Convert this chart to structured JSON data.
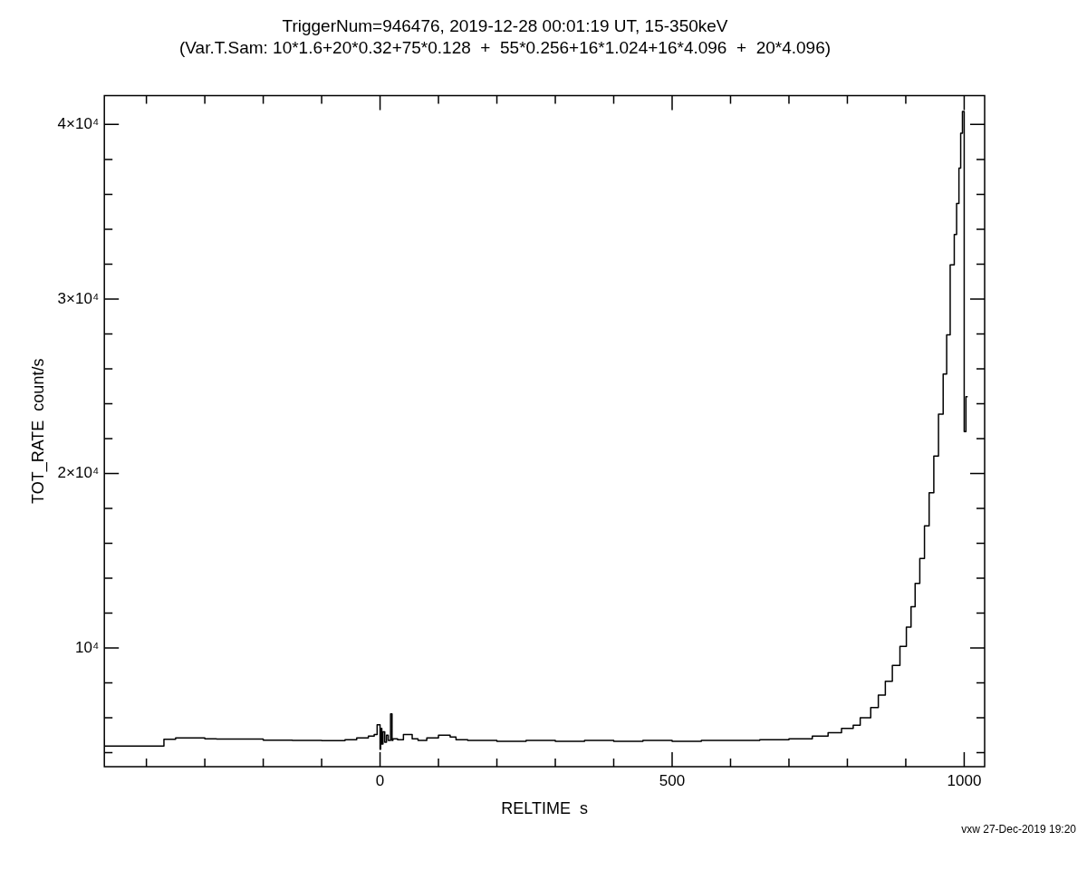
{
  "chart_data": {
    "type": "step",
    "title": "TriggerNum=946476, 2019-12-28 00:01:19 UT, 15-350keV",
    "subtitle": "(Var.T.Sam: 10*1.6+20*0.32+75*0.128  +  55*0.256+16*1.024+16*4.096  +  20*4.096)",
    "xlabel": "RELTIME  s",
    "ylabel": "TOT_RATE  count/s",
    "annotations": [
      "vxw 27-Dec-2019 19:20"
    ],
    "xlim": [
      -472,
      1035
    ],
    "ylim": [
      3200,
      41650
    ],
    "xticks": [
      {
        "value": -400,
        "label": null
      },
      {
        "value": -300,
        "label": null
      },
      {
        "value": -200,
        "label": null
      },
      {
        "value": -100,
        "label": null
      },
      0,
      {
        "value": 100,
        "label": null
      },
      {
        "value": 200,
        "label": null
      },
      {
        "value": 300,
        "label": null
      },
      {
        "value": 400,
        "label": null
      },
      500,
      {
        "value": 600,
        "label": null
      },
      {
        "value": 700,
        "label": null
      },
      {
        "value": 800,
        "label": null
      },
      {
        "value": 900,
        "label": null
      },
      1000
    ],
    "yticks": [
      {
        "value": 4000,
        "label": null
      },
      {
        "value": 6000,
        "label": null
      },
      {
        "value": 8000,
        "label": null
      },
      {
        "value": 10000,
        "label": "10⁴"
      },
      {
        "value": 12000,
        "label": null
      },
      {
        "value": 14000,
        "label": null
      },
      {
        "value": 16000,
        "label": null
      },
      {
        "value": 18000,
        "label": null
      },
      {
        "value": 20000,
        "label": "2×10⁴"
      },
      {
        "value": 22000,
        "label": null
      },
      {
        "value": 24000,
        "label": null
      },
      {
        "value": 26000,
        "label": null
      },
      {
        "value": 28000,
        "label": null
      },
      {
        "value": 30000,
        "label": "3×10⁴"
      },
      {
        "value": 32000,
        "label": null
      },
      {
        "value": 34000,
        "label": null
      },
      {
        "value": 36000,
        "label": null
      },
      {
        "value": 38000,
        "label": null
      },
      {
        "value": 40000,
        "label": "4×10⁴"
      }
    ],
    "grid": false,
    "legend": false,
    "marker": "none",
    "line_style": "solid",
    "series": [
      {
        "color": "#000000",
        "x": [
          -472,
          -370,
          -350,
          -300,
          -280,
          -200,
          -150,
          -100,
          -60,
          -40,
          -20,
          -10,
          -5,
          0,
          1,
          3,
          5,
          8,
          11,
          14,
          18,
          20.5,
          22,
          30,
          40,
          55,
          65,
          80,
          100,
          120,
          130,
          150,
          200,
          250,
          300,
          350,
          400,
          450,
          500,
          550,
          600,
          650,
          700,
          740,
          767,
          790,
          810,
          822,
          840,
          853,
          865,
          877,
          890,
          901,
          909,
          916,
          924,
          932,
          940,
          948,
          956,
          964,
          970,
          976,
          983,
          987,
          991,
          994,
          997,
          1000,
          1003,
          1006
        ],
        "values": [
          4750,
          4380,
          4770,
          4850,
          4800,
          4780,
          4720,
          4710,
          4690,
          4750,
          4850,
          4950,
          5050,
          5600,
          4200,
          5400,
          4500,
          5200,
          4600,
          5000,
          4700,
          6230,
          4700,
          4800,
          4750,
          5050,
          4800,
          4700,
          4850,
          5000,
          4900,
          4750,
          4700,
          4650,
          4700,
          4650,
          4700,
          4650,
          4700,
          4650,
          4700,
          4700,
          4750,
          4800,
          4950,
          5150,
          5400,
          5578,
          6000,
          6583,
          7300,
          8090,
          9000,
          10100,
          11200,
          12360,
          13700,
          15125,
          17000,
          18900,
          21000,
          23400,
          25700,
          27940,
          31960,
          33700,
          35480,
          37500,
          39500,
          40750,
          22400,
          24400
        ]
      }
    ]
  }
}
